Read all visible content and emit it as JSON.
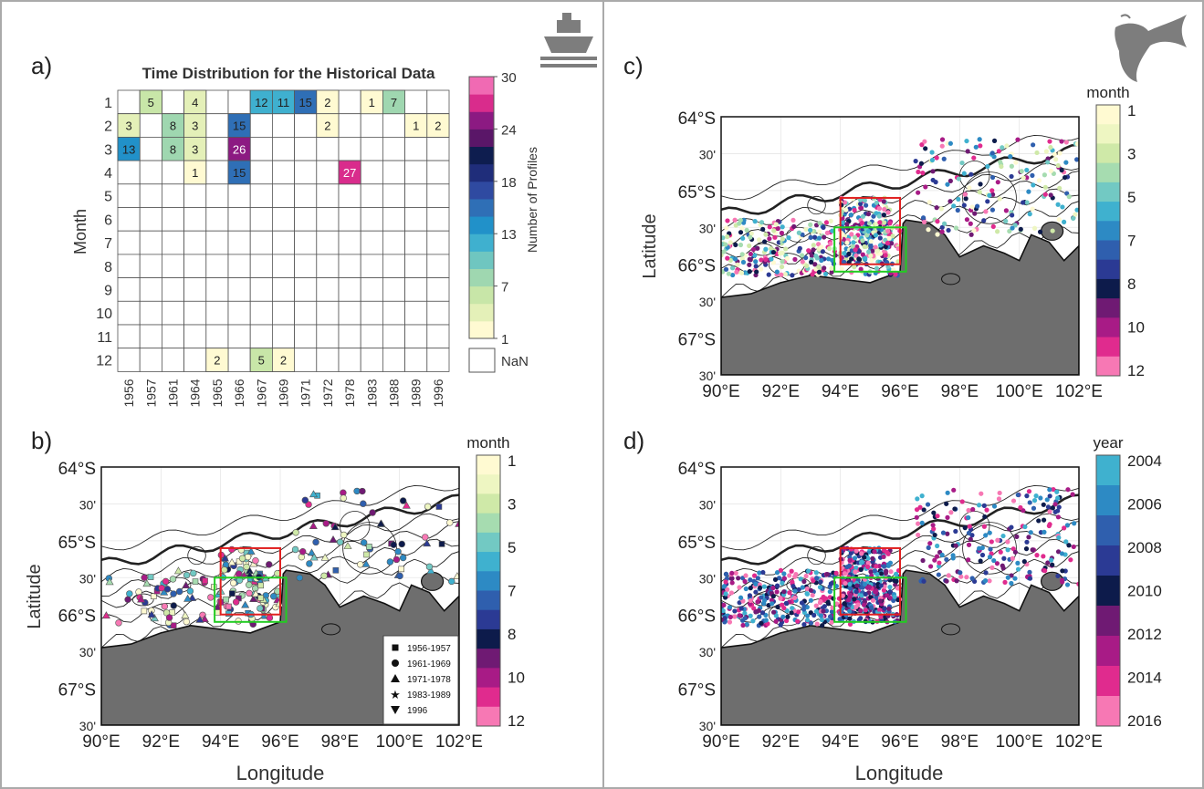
{
  "panel_labels": [
    "a)",
    "b)",
    "c)",
    "d)"
  ],
  "map_axes": {
    "lat_ticks": [
      "64°S",
      "30'",
      "65°S",
      "30'",
      "66°S",
      "30'",
      "67°S",
      "30'"
    ],
    "lon_ticks": [
      "90°E",
      "92°E",
      "94°E",
      "96°E",
      "98°E",
      "100°E",
      "102°E"
    ],
    "ylabel": "Latitude",
    "xlabel": "Longitude"
  },
  "month_colorbar": {
    "title": "month",
    "ticks": [
      "1",
      "3",
      "5",
      "7",
      "8",
      "10",
      "12"
    ]
  },
  "year_colorbar": {
    "title": "year",
    "ticks": [
      "2004",
      "2006",
      "2008",
      "2010",
      "2012",
      "2014",
      "2016"
    ]
  },
  "profile_colorbar": {
    "label": "Number of Profiles",
    "ticks": [
      "30",
      "24",
      "18",
      "13",
      "7",
      "1"
    ],
    "nan_label": "NaN"
  },
  "legend_b": [
    {
      "symbol": "square",
      "label": "1956-1957"
    },
    {
      "symbol": "circle",
      "label": "1961-1969"
    },
    {
      "symbol": "triangle",
      "label": "1971-1978"
    },
    {
      "symbol": "star",
      "label": "1983-1989"
    },
    {
      "symbol": "triangle-down",
      "label": "1996"
    }
  ],
  "chart_data": [
    {
      "type": "heatmap",
      "panel": "a)",
      "title": "Time Distribution for the Historical Data",
      "ylabel": "Month",
      "colorbar_label": "Number of Profiles",
      "x_categories": [
        "1956",
        "1957",
        "1961",
        "1964",
        "1965",
        "1966",
        "1967",
        "1969",
        "1971",
        "1972",
        "1978",
        "1983",
        "1988",
        "1989",
        "1996"
      ],
      "y_categories": [
        "1",
        "2",
        "3",
        "4",
        "5",
        "6",
        "7",
        "8",
        "9",
        "10",
        "11",
        "12"
      ],
      "color_range": [
        1,
        30
      ],
      "cells": [
        {
          "month": 1,
          "year": "1957",
          "value": 5
        },
        {
          "month": 1,
          "year": "1964",
          "value": 4
        },
        {
          "month": 1,
          "year": "1967",
          "value": 12
        },
        {
          "month": 1,
          "year": "1969",
          "value": 11
        },
        {
          "month": 1,
          "year": "1971",
          "value": 15
        },
        {
          "month": 1,
          "year": "1972",
          "value": 2
        },
        {
          "month": 1,
          "year": "1983",
          "value": 1
        },
        {
          "month": 1,
          "year": "1988",
          "value": 7
        },
        {
          "month": 2,
          "year": "1956",
          "value": 3
        },
        {
          "month": 2,
          "year": "1961",
          "value": 8
        },
        {
          "month": 2,
          "year": "1964",
          "value": 3
        },
        {
          "month": 2,
          "year": "1966",
          "value": 15
        },
        {
          "month": 2,
          "year": "1972",
          "value": 2
        },
        {
          "month": 2,
          "year": "1989",
          "value": 1
        },
        {
          "month": 2,
          "year": "1996",
          "value": 2
        },
        {
          "month": 3,
          "year": "1956",
          "value": 13
        },
        {
          "month": 3,
          "year": "1961",
          "value": 8
        },
        {
          "month": 3,
          "year": "1964",
          "value": 3
        },
        {
          "month": 3,
          "year": "1966",
          "value": 26
        },
        {
          "month": 4,
          "year": "1964",
          "value": 1
        },
        {
          "month": 4,
          "year": "1966",
          "value": 15
        },
        {
          "month": 4,
          "year": "1978",
          "value": 27
        },
        {
          "month": 12,
          "year": "1965",
          "value": 2
        },
        {
          "month": 12,
          "year": "1967",
          "value": 5
        },
        {
          "month": 12,
          "year": "1969",
          "value": 2
        }
      ]
    },
    {
      "type": "scatter",
      "panel": "b)",
      "xlabel": "Longitude",
      "ylabel": "Latitude",
      "xlim": [
        90,
        102
      ],
      "ylim": [
        -67.5,
        -64
      ],
      "color_by": "month",
      "colorbar_title": "month",
      "marker_by": "year group",
      "boxes": [
        {
          "color": "#e02020",
          "lon": [
            94,
            96
          ],
          "lat": [
            -66,
            -65.1
          ]
        },
        {
          "color": "#22cc22",
          "lon": [
            93.8,
            96.2
          ],
          "lat": [
            -66.1,
            -65.5
          ]
        }
      ]
    },
    {
      "type": "scatter",
      "panel": "c)",
      "xlabel": "",
      "ylabel": "Latitude",
      "xlim": [
        90,
        102
      ],
      "ylim": [
        -67.5,
        -64
      ],
      "color_by": "month",
      "colorbar_title": "month",
      "boxes": [
        {
          "color": "#e02020",
          "lon": [
            94,
            96
          ],
          "lat": [
            -66,
            -65.1
          ]
        },
        {
          "color": "#22cc22",
          "lon": [
            93.8,
            96.2
          ],
          "lat": [
            -66.1,
            -65.5
          ]
        }
      ]
    },
    {
      "type": "scatter",
      "panel": "d)",
      "xlabel": "Longitude",
      "ylabel": "",
      "xlim": [
        90,
        102
      ],
      "ylim": [
        -67.5,
        -64
      ],
      "color_by": "year",
      "colorbar_title": "year",
      "boxes": [
        {
          "color": "#e02020",
          "lon": [
            94,
            96
          ],
          "lat": [
            -66,
            -65.1
          ]
        },
        {
          "color": "#22cc22",
          "lon": [
            93.8,
            96.2
          ],
          "lat": [
            -66.1,
            -65.5
          ]
        }
      ]
    }
  ]
}
